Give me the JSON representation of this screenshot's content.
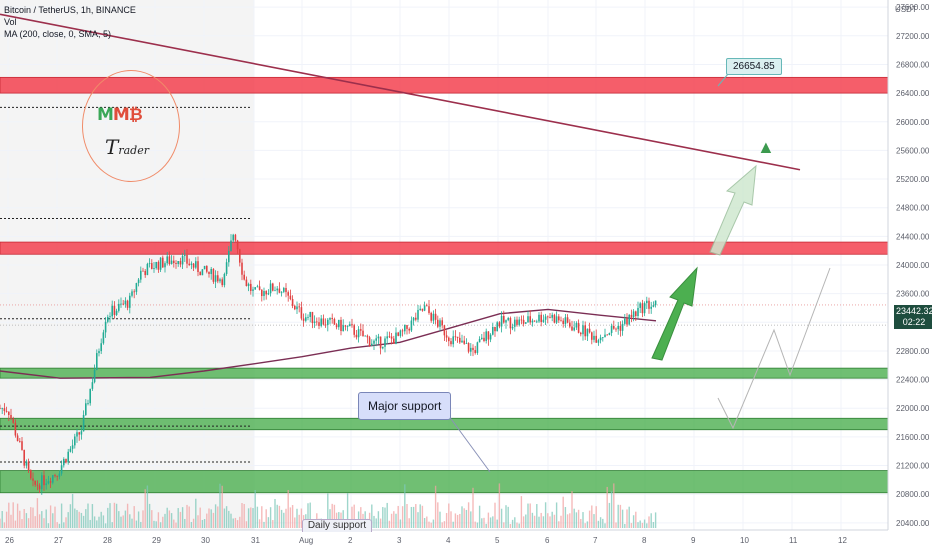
{
  "legend": {
    "symbol": "Bitcoin / TetherUS, 1h, BINANCE",
    "volume": "Vol",
    "ma": "MA (200, close, 0, SMA, 5)"
  },
  "currency": "USDT",
  "logo": {
    "initials": "MMB",
    "text": "Trader"
  },
  "annotations": {
    "major_support": "Major support",
    "target_label": "26654.85",
    "hidden_label": "Daily support"
  },
  "current_price": "23442.32",
  "countdown": "02:22",
  "colors": {
    "resistance_zone": "#f23645",
    "support_zone": "#4caf50",
    "trendline": "#9c2f4c",
    "ma_line": "#7b2e54",
    "candle_up": "#22ab94",
    "candle_down": "#e04040",
    "arrow_green": "#4caf50"
  },
  "chart_data": {
    "type": "candlestick",
    "pair": "BTC/USDT",
    "interval": "1h",
    "y_axis": {
      "ylim": [
        20300,
        27700
      ],
      "ticks": [
        20400,
        20800,
        21200,
        21600,
        22000,
        22400,
        22800,
        23200,
        23600,
        24000,
        24400,
        24800,
        25200,
        25600,
        26000,
        26400,
        26800,
        27200,
        27600
      ],
      "tick_labels": [
        "20400.00",
        "20800.00",
        "21200.00",
        "21600.00",
        "22000.00",
        "22400.00",
        "22800.00",
        "23200.00",
        "23600.00",
        "24000.00",
        "24400.00",
        "24800.00",
        "25200.00",
        "25600.00",
        "26000.00",
        "26400.00",
        "26800.00",
        "27200.00",
        "27600.00"
      ]
    },
    "x_axis": {
      "tick_labels": [
        "26",
        "27",
        "28",
        "29",
        "30",
        "31",
        "Aug",
        "2",
        "3",
        "4",
        "5",
        "6",
        "7",
        "8",
        "9",
        "10",
        "11",
        "12"
      ]
    },
    "ohlc_keypoints": [
      [
        "26",
        22000
      ],
      [
        "26.5",
        20900
      ],
      [
        "27",
        21100
      ],
      [
        "27.5",
        21700
      ],
      [
        "28",
        23300
      ],
      [
        "28.5",
        23500
      ],
      [
        "28.7",
        23900
      ],
      [
        "29",
        24000
      ],
      [
        "29.5",
        24100
      ],
      [
        "30",
        23900
      ],
      [
        "30.4",
        23800
      ],
      [
        "30.6",
        24500
      ],
      [
        "30.8",
        23800
      ],
      [
        "31",
        23600
      ],
      [
        "31.5",
        23700
      ],
      [
        "Aug",
        23300
      ],
      [
        "2",
        23100
      ],
      [
        "2.5",
        22900
      ],
      [
        "3",
        23000
      ],
      [
        "3.5",
        23400
      ],
      [
        "4",
        23000
      ],
      [
        "4.5",
        22800
      ],
      [
        "5",
        23200
      ],
      [
        "5.5",
        23200
      ],
      [
        "6",
        23300
      ],
      [
        "7",
        23000
      ],
      [
        "7.5",
        23150
      ],
      [
        "8",
        23442
      ]
    ],
    "zones": {
      "resistance": [
        [
          26400,
          26620
        ],
        [
          24150,
          24320
        ]
      ],
      "support": [
        [
          22420,
          22560
        ],
        [
          21700,
          21860
        ],
        [
          20820,
          21130
        ]
      ]
    },
    "ma200": [
      [
        24.5,
        22520
      ],
      [
        28,
        22420
      ],
      [
        30,
        22600
      ],
      [
        31,
        22760
      ],
      [
        2,
        22870
      ],
      [
        4,
        23200
      ],
      [
        5.5,
        23420
      ],
      [
        6.5,
        23350
      ],
      [
        8,
        23200
      ]
    ],
    "trendline": [
      [
        24.5,
        27500
      ],
      [
        11.2,
        25330
      ]
    ],
    "dotted_levels": [
      26200,
      24650,
      23250,
      21750,
      21250
    ],
    "dotted_price_line": 23442.32,
    "target": 26654.85
  }
}
